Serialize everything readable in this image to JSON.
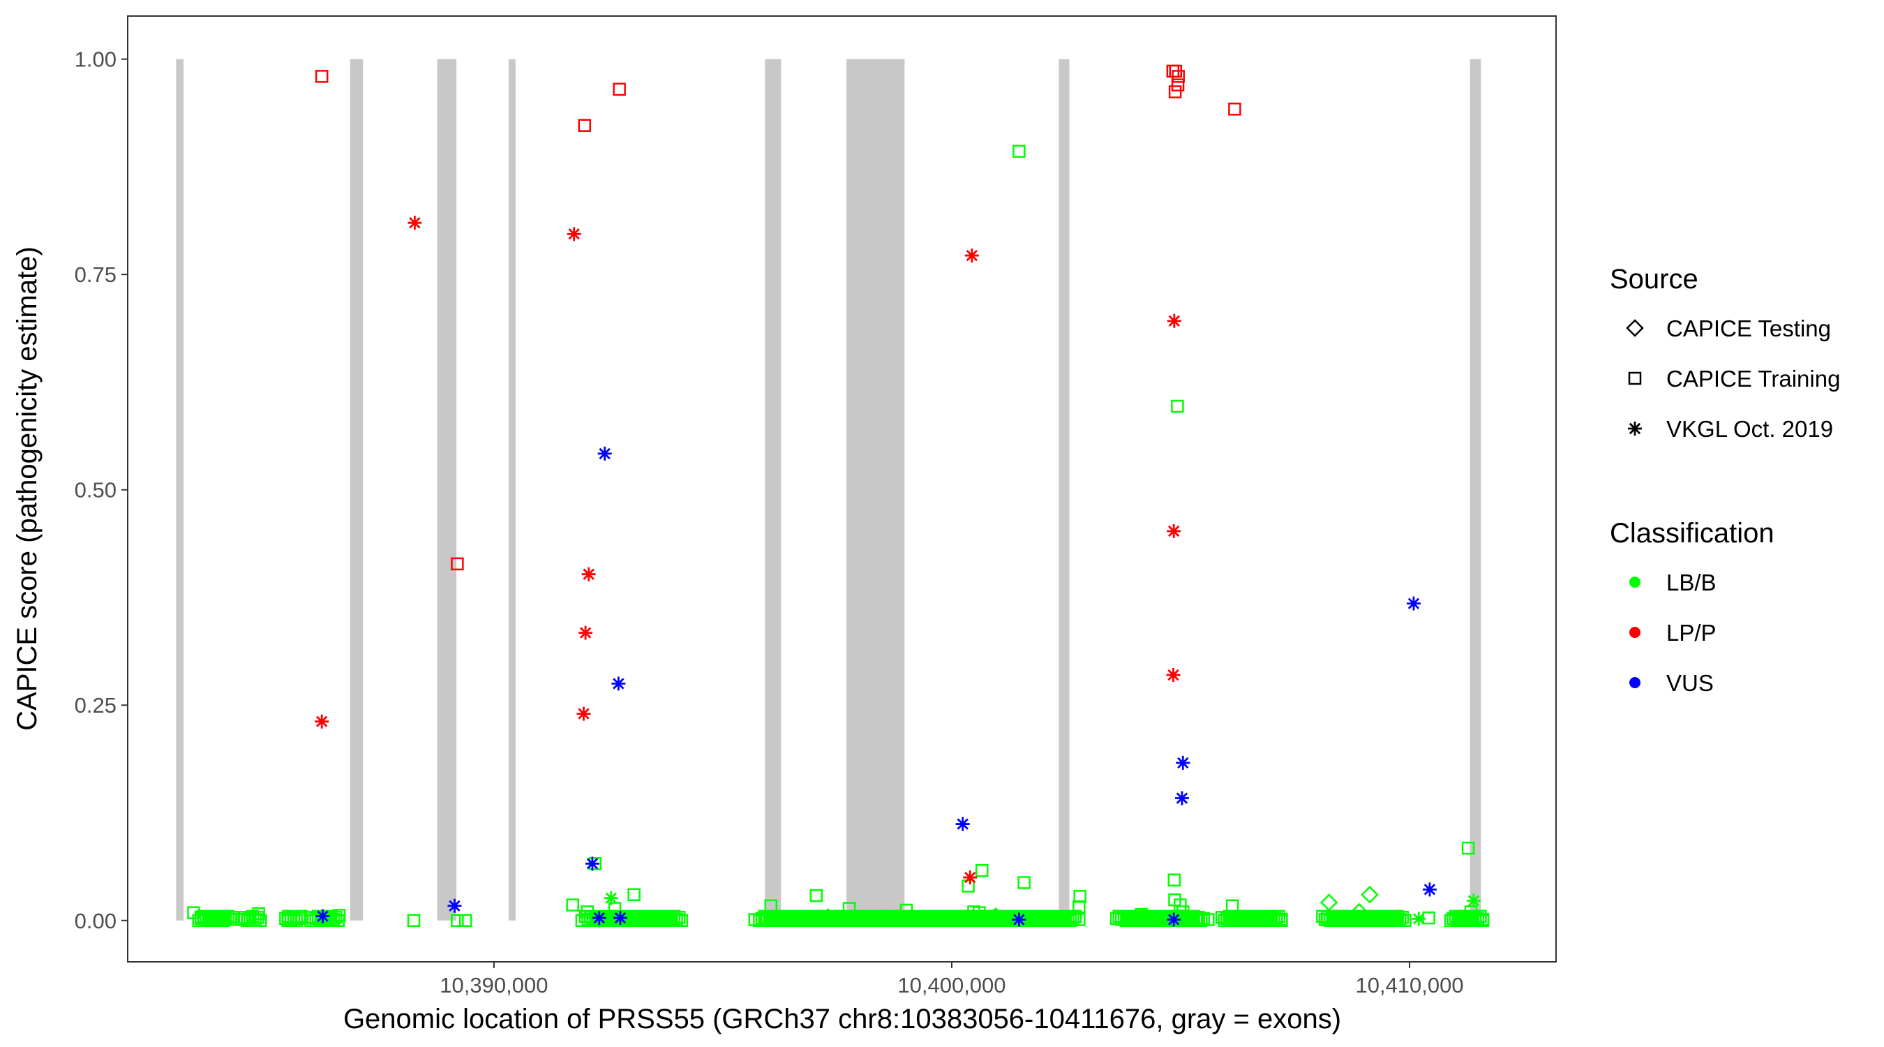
{
  "chart_data": {
    "type": "scatter",
    "xlabel": "Genomic location of PRSS55 (GRCh37 chr8:10383056-10411676, gray = exons)",
    "ylabel": "CAPICE score (pathogenicity estimate)",
    "xlim": [
      10382000,
      10413200
    ],
    "ylim": [
      -0.048,
      1.05
    ],
    "x_ticks": [
      10390000,
      10400000,
      10410000
    ],
    "x_tick_labels": [
      "10,390,000",
      "10,400,000",
      "10,410,000"
    ],
    "y_ticks": [
      0,
      0.25,
      0.5,
      0.75,
      1.0
    ],
    "y_tick_labels": [
      "0.00",
      "0.25",
      "0.50",
      "0.75",
      "1.00"
    ],
    "grid": false,
    "exons": [
      [
        10383056,
        10383220
      ],
      [
        10386860,
        10387140
      ],
      [
        10388760,
        10389180
      ],
      [
        10390320,
        10390460
      ],
      [
        10395920,
        10396270
      ],
      [
        10397700,
        10398970
      ],
      [
        10402340,
        10402570
      ],
      [
        10411320,
        10411560
      ]
    ],
    "legend": {
      "placement": "right",
      "source_title": "Source",
      "source_items": [
        {
          "label": "CAPICE Testing",
          "shape": "diamond"
        },
        {
          "label": "CAPICE Training",
          "shape": "square"
        },
        {
          "label": "VKGL Oct. 2019",
          "shape": "asterisk"
        }
      ],
      "class_title": "Classification",
      "class_items": [
        {
          "label": "LB/B",
          "color": "#00ff00"
        },
        {
          "label": "LP/P",
          "color": "#ff0000"
        },
        {
          "label": "VUS",
          "color": "#0000ff"
        }
      ]
    },
    "colors": {
      "LB/B": "#00ff00",
      "LP/P": "#ff0000",
      "VUS": "#0000ff",
      "exon": "#c8c8c8"
    },
    "series": [
      {
        "source": "CAPICE Training",
        "classification": "LP/P",
        "points": [
          [
            10386240,
            0.98
          ],
          [
            10391980,
            0.923
          ],
          [
            10392740,
            0.965
          ],
          [
            10389200,
            0.414
          ],
          [
            10404830,
            0.986
          ],
          [
            10404890,
            0.986
          ],
          [
            10404950,
            0.98
          ],
          [
            10404940,
            0.97
          ],
          [
            10404880,
            0.962
          ],
          [
            10406180,
            0.942
          ]
        ]
      },
      {
        "source": "VKGL Oct. 2019",
        "classification": "LP/P",
        "points": [
          [
            10386240,
            0.231
          ],
          [
            10388270,
            0.81
          ],
          [
            10391750,
            0.797
          ],
          [
            10391960,
            0.24
          ],
          [
            10392000,
            0.334
          ],
          [
            10392070,
            0.402
          ],
          [
            10400440,
            0.772
          ],
          [
            10400400,
            0.05
          ],
          [
            10404860,
            0.696
          ],
          [
            10404850,
            0.452
          ],
          [
            10404840,
            0.285
          ]
        ]
      },
      {
        "source": "VKGL Oct. 2019",
        "classification": "VUS",
        "points": [
          [
            10392420,
            0.542
          ],
          [
            10392720,
            0.275
          ],
          [
            10392150,
            0.066
          ],
          [
            10389140,
            0.017
          ],
          [
            10386260,
            0.005
          ],
          [
            10392760,
            0.003
          ],
          [
            10392300,
            0.003
          ],
          [
            10400240,
            0.112
          ],
          [
            10405050,
            0.183
          ],
          [
            10405030,
            0.142
          ],
          [
            10410090,
            0.368
          ],
          [
            10410440,
            0.036
          ],
          [
            10404850,
            0.001
          ],
          [
            10401470,
            0.001
          ]
        ]
      },
      {
        "source": "CAPICE Training",
        "classification": "LB/B",
        "points": [
          [
            10401470,
            0.893
          ],
          [
            10404930,
            0.597
          ],
          [
            10411280,
            0.084
          ],
          [
            10400660,
            0.058
          ],
          [
            10401580,
            0.044
          ],
          [
            10400360,
            0.04
          ],
          [
            10392210,
            0.066
          ],
          [
            10393060,
            0.03
          ],
          [
            10397040,
            0.029
          ],
          [
            10402800,
            0.028
          ],
          [
            10404860,
            0.047
          ],
          [
            10391720,
            0.018
          ],
          [
            10396050,
            0.017
          ],
          [
            10402780,
            0.016
          ],
          [
            10406130,
            0.017
          ],
          [
            10404870,
            0.024
          ],
          [
            10404990,
            0.018
          ],
          [
            10397760,
            0.014
          ],
          [
            10399010,
            0.012
          ],
          [
            10400480,
            0.01
          ],
          [
            10400600,
            0.009
          ],
          [
            10392040,
            0.01
          ],
          [
            10392640,
            0.014
          ],
          [
            10383440,
            0.009
          ],
          [
            10384860,
            0.008
          ],
          [
            10404140,
            0.007
          ],
          [
            10405050,
            0.01
          ],
          [
            10386620,
            0.006
          ],
          [
            10410420,
            0.003
          ],
          [
            10411340,
            0.01
          ],
          [
            10383600,
            0.004
          ],
          [
            10384100,
            0.002
          ],
          [
            10384620,
            0.001
          ],
          [
            10385500,
            0.0
          ],
          [
            10386000,
            0.0
          ],
          [
            10386400,
            0.001
          ],
          [
            10388250,
            0.0
          ],
          [
            10389200,
            0.0
          ],
          [
            10389380,
            0.0
          ],
          [
            10391920,
            0.0
          ],
          [
            10392460,
            0.0
          ],
          [
            10392900,
            0.0
          ],
          [
            10393400,
            0.002
          ],
          [
            10395700,
            0.001
          ],
          [
            10396500,
            0.0
          ],
          [
            10397000,
            0.0
          ],
          [
            10397300,
            0.002
          ],
          [
            10397500,
            0.001
          ],
          [
            10397900,
            0.0
          ],
          [
            10398300,
            0.002
          ],
          [
            10398600,
            0.0
          ],
          [
            10399400,
            0.001
          ],
          [
            10399700,
            0.0
          ],
          [
            10400000,
            0.002
          ],
          [
            10400800,
            0.001
          ],
          [
            10401100,
            0.0
          ],
          [
            10401700,
            0.002
          ],
          [
            10402000,
            0.001
          ],
          [
            10402300,
            0.0
          ],
          [
            10402780,
            0.001
          ],
          [
            10403900,
            0.0
          ],
          [
            10404300,
            0.002
          ],
          [
            10404600,
            0.001
          ],
          [
            10405200,
            0.0
          ],
          [
            10405600,
            0.001
          ],
          [
            10406100,
            0.0
          ],
          [
            10406500,
            0.002
          ],
          [
            10406800,
            0.0
          ],
          [
            10407200,
            0.0
          ],
          [
            10408200,
            0.001
          ],
          [
            10408600,
            0.0
          ],
          [
            10409000,
            0.002
          ],
          [
            10409400,
            0.0
          ],
          [
            10409700,
            0.001
          ],
          [
            10411100,
            0.0
          ],
          [
            10411600,
            0.0
          ]
        ]
      },
      {
        "source": "CAPICE Testing",
        "classification": "LB/B",
        "points": [
          [
            10408240,
            0.021
          ],
          [
            10409130,
            0.03
          ],
          [
            10408900,
            0.01
          ],
          [
            10400960,
            0.005
          ],
          [
            10397300,
            0.004
          ],
          [
            10404980,
            0.003
          ],
          [
            10392300,
            0.002
          ]
        ]
      },
      {
        "source": "VKGL Oct. 2019",
        "classification": "LB/B",
        "points": [
          [
            10392560,
            0.026
          ],
          [
            10411400,
            0.023
          ],
          [
            10392860,
            0.004
          ],
          [
            10410200,
            0.002
          ],
          [
            10392330,
            0.002
          ],
          [
            10386380,
            0.001
          ]
        ]
      }
    ],
    "baseline_clusters": [
      [
        10383550,
        10384300
      ],
      [
        10384500,
        10384900
      ],
      [
        10385450,
        10385800
      ],
      [
        10386000,
        10386600
      ],
      [
        10392000,
        10394100
      ],
      [
        10395800,
        10399200
      ],
      [
        10399200,
        10402700
      ],
      [
        10403600,
        10405500
      ],
      [
        10405900,
        10407200
      ],
      [
        10408100,
        10409900
      ],
      [
        10410900,
        10411600
      ]
    ]
  }
}
